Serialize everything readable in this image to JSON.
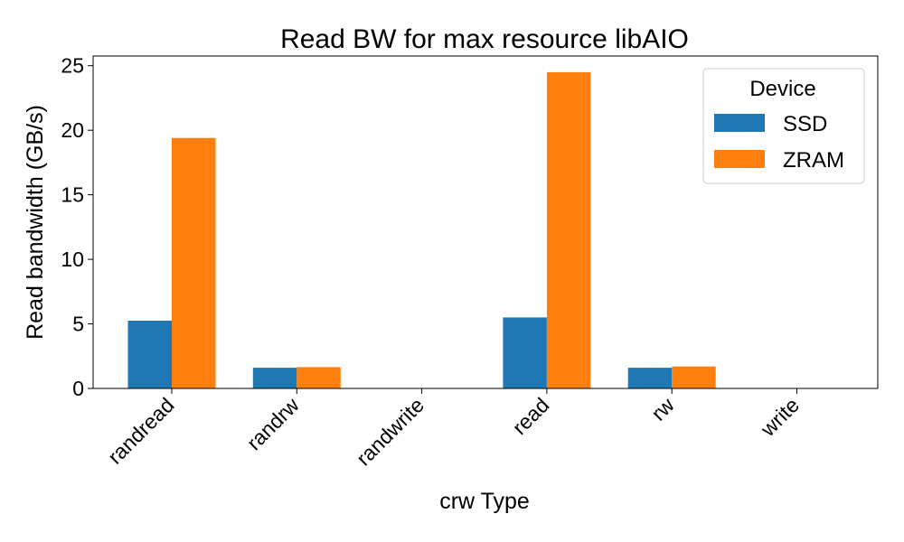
{
  "chart_data": {
    "type": "bar",
    "title": "Read BW for max resource libAIO",
    "xlabel": "crw Type",
    "ylabel": "Read bandwidth (GB/s)",
    "categories": [
      "randread",
      "randrw",
      "randwrite",
      "read",
      "rw",
      "write"
    ],
    "series": [
      {
        "name": "SSD",
        "color": "#1f77b4",
        "values": [
          5.25,
          1.6,
          0,
          5.5,
          1.6,
          0
        ]
      },
      {
        "name": "ZRAM",
        "color": "#ff7f0e",
        "values": [
          19.4,
          1.65,
          0,
          24.5,
          1.7,
          0
        ]
      }
    ],
    "ylim": [
      0,
      25.75
    ],
    "yticks": [
      0,
      5,
      10,
      15,
      20,
      25
    ],
    "legend": {
      "title": "Device",
      "position": "top-right"
    },
    "grid": false
  }
}
